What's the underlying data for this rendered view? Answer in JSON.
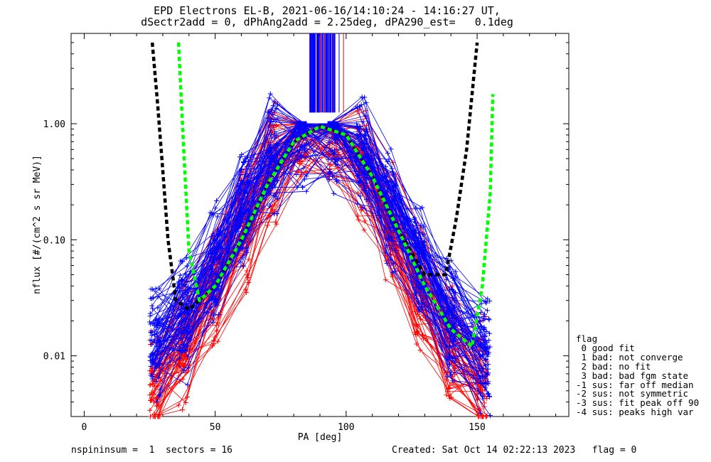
{
  "title": {
    "line1": "EPD Electrons EL-B, 2021-06-16/14:10:24 - 14:16:27 UT,",
    "line2": "dSectr2add = 0, dPhAng2add = 2.25deg, dPA290_est=   0.1deg"
  },
  "legend": {
    "title": "flag",
    "items": [
      " 0 good fit",
      " 1 bad: not converge",
      " 2 bad: no fit",
      " 3 bad: bad fgm state",
      "-1 sus: far off median",
      "-2 sus: not symmetric",
      "-3 sus: fit peak off 90",
      "-4 sus: peaks high var"
    ]
  },
  "footer": {
    "left": "nspininsum =  1  sectors = 16",
    "right": "Created: Sat Oct 14 02:22:13 2023   flag = 0"
  },
  "colors": {
    "data_red": "#ff0000",
    "data_blue": "#0000ff",
    "median_fit": "#00ff00",
    "reference_fit": "#000000"
  },
  "chart_data": {
    "type": "line",
    "xlabel": "PA [deg]",
    "ylabel": "nflux [#/(cm^2 s sr MeV)]",
    "xlim": [
      -5,
      185
    ],
    "ylim": [
      0.003,
      6
    ],
    "yscale": "log",
    "xticks": [
      "0",
      "50",
      "100",
      "150"
    ],
    "yticks": [
      "0.01",
      "0.10",
      "1.00"
    ],
    "grid": false,
    "series": [
      {
        "color": "red",
        "x": [
          27,
          38,
          50,
          61,
          72,
          83,
          95,
          106,
          117,
          128,
          140,
          152
        ],
        "y": [
          0.006,
          0.012,
          0.04,
          0.13,
          0.45,
          0.85,
          0.9,
          0.45,
          0.13,
          0.035,
          0.012,
          0.006
        ]
      },
      {
        "color": "blue",
        "x": [
          27,
          38,
          50,
          61,
          72,
          83,
          95,
          106,
          117,
          128,
          140,
          153
        ],
        "y": [
          0.012,
          0.02,
          0.06,
          0.18,
          0.5,
          0.88,
          0.95,
          0.5,
          0.18,
          0.06,
          0.02,
          0.01
        ]
      },
      {
        "color": "green-dashed",
        "x": [
          36,
          38,
          40,
          44,
          50,
          60,
          70,
          80,
          90,
          100,
          110,
          120,
          130,
          140,
          148,
          152,
          155,
          156
        ],
        "y": [
          5,
          0.6,
          0.08,
          0.03,
          0.04,
          0.1,
          0.3,
          0.7,
          0.95,
          0.8,
          0.35,
          0.12,
          0.04,
          0.017,
          0.012,
          0.04,
          0.25,
          1.8
        ]
      },
      {
        "color": "black-dashed",
        "x": [
          26,
          28,
          30,
          32,
          35,
          40,
          50,
          60,
          70,
          80,
          90,
          100,
          110,
          120,
          130,
          138,
          142,
          146,
          150
        ],
        "y": [
          5,
          1.5,
          0.4,
          0.1,
          0.03,
          0.025,
          0.04,
          0.1,
          0.3,
          0.7,
          0.95,
          0.8,
          0.35,
          0.12,
          0.05,
          0.05,
          0.15,
          0.6,
          5
        ]
      }
    ]
  }
}
